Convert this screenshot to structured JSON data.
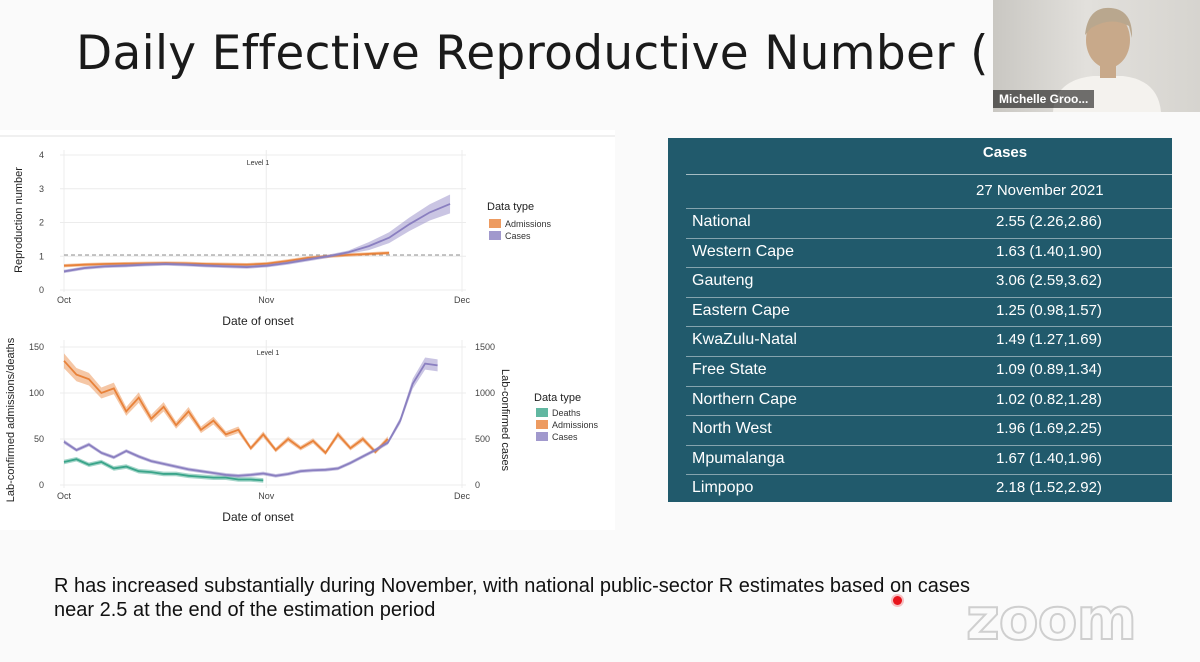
{
  "slide": {
    "title": "Daily Effective Reproductive Number (R)",
    "caption_line1": "R has increased substantially during November, with national public-sector R estimates based on cases",
    "caption_line2": "near 2.5 at the end of the estimation period"
  },
  "participant": {
    "name": "Michelle Groo..."
  },
  "watermark": "zoom",
  "table": {
    "header": "Cases",
    "date": "27 November 2021",
    "rows": [
      {
        "region": "National",
        "value": "2.55 (2.26,2.86)"
      },
      {
        "region": "Western Cape",
        "value": "1.63 (1.40,1.90)"
      },
      {
        "region": "Gauteng",
        "value": "3.06 (2.59,3.62)"
      },
      {
        "region": "Eastern Cape",
        "value": "1.25 (0.98,1.57)"
      },
      {
        "region": "KwaZulu-Natal",
        "value": "1.49 (1.27,1.69)"
      },
      {
        "region": "Free State",
        "value": "1.09 (0.89,1.34)"
      },
      {
        "region": "Northern Cape",
        "value": "1.02 (0.82,1.28)"
      },
      {
        "region": "North West",
        "value": "1.96 (1.69,2.25)"
      },
      {
        "region": "Mpumalanga",
        "value": "1.67 (1.40,1.96)"
      },
      {
        "region": "Limpopo",
        "value": "2.18 (1.52,2.92)"
      }
    ]
  },
  "colors": {
    "admissions": "#e8823a",
    "cases": "#8a7fc0",
    "deaths": "#3aa58a",
    "panel": "#215a6c"
  },
  "chart_data": [
    {
      "type": "line",
      "annotation": "Level 1",
      "xlabel": "Date of onset",
      "ylabel": "Reproduction number",
      "x_ticks": [
        "Oct",
        "Nov",
        "Dec"
      ],
      "y_ticks": [
        "0",
        "1",
        "2",
        "3",
        "4"
      ],
      "ylim": [
        0,
        4
      ],
      "reference_line": 1,
      "legend_title": "Data type",
      "legend_position": "right",
      "x_days": [
        0,
        5,
        10,
        15,
        20,
        25,
        30,
        35,
        40,
        45,
        50,
        55,
        60,
        65,
        70,
        75,
        80,
        85,
        90,
        95
      ],
      "series": [
        {
          "name": "Admissions",
          "color": "#e8823a",
          "values": [
            0.72,
            0.75,
            0.77,
            0.78,
            0.79,
            0.8,
            0.79,
            0.77,
            0.76,
            0.75,
            0.78,
            0.86,
            0.95,
            1.0,
            1.04,
            1.07,
            1.1,
            null,
            null,
            null
          ]
        },
        {
          "name": "Cases",
          "color": "#8a7fc0",
          "values": [
            0.55,
            0.65,
            0.7,
            0.72,
            0.75,
            0.77,
            0.75,
            0.72,
            0.7,
            0.68,
            0.72,
            0.8,
            0.9,
            1.0,
            1.12,
            1.3,
            1.55,
            1.95,
            2.3,
            2.55
          ]
        }
      ]
    },
    {
      "type": "line",
      "annotation": "Level 1",
      "xlabel": "Date of onset",
      "ylabel": "Lab-confirmed admissions/deaths",
      "y2label": "Lab-confirmed cases",
      "x_ticks": [
        "Oct",
        "Nov",
        "Dec"
      ],
      "y_ticks": [
        "0",
        "50",
        "100",
        "150"
      ],
      "y2_ticks": [
        "0",
        "500",
        "1000",
        "1500"
      ],
      "ylim": [
        0,
        150
      ],
      "y2lim": [
        0,
        1500
      ],
      "legend_title": "Data type",
      "legend_position": "right",
      "x_days": [
        0,
        3,
        6,
        9,
        12,
        15,
        18,
        21,
        24,
        27,
        30,
        33,
        36,
        39,
        42,
        45,
        48,
        51,
        54,
        57,
        60,
        63,
        66,
        69,
        72,
        75,
        78,
        81,
        84,
        87,
        90,
        93
      ],
      "series": [
        {
          "name": "Deaths",
          "color": "#3aa58a",
          "axis": "left",
          "values": [
            25,
            28,
            22,
            25,
            18,
            20,
            15,
            14,
            12,
            12,
            10,
            9,
            8,
            8,
            6,
            6,
            5,
            null,
            null,
            null,
            null,
            null,
            null,
            null,
            null,
            null,
            null,
            null,
            null,
            null,
            null,
            null
          ]
        },
        {
          "name": "Admissions",
          "color": "#e8823a",
          "axis": "left",
          "values": [
            135,
            120,
            115,
            100,
            105,
            80,
            95,
            72,
            85,
            65,
            80,
            60,
            70,
            55,
            60,
            40,
            55,
            38,
            50,
            40,
            48,
            35,
            55,
            40,
            50,
            36,
            50,
            null,
            null,
            null,
            null,
            null
          ]
        },
        {
          "name": "Cases",
          "color": "#8a7fc0",
          "axis": "right",
          "values": [
            470,
            380,
            440,
            350,
            300,
            370,
            310,
            260,
            230,
            200,
            170,
            150,
            130,
            110,
            100,
            110,
            125,
            100,
            120,
            150,
            160,
            165,
            180,
            240,
            310,
            380,
            460,
            700,
            1100,
            1320,
            1300,
            null
          ]
        }
      ]
    }
  ]
}
